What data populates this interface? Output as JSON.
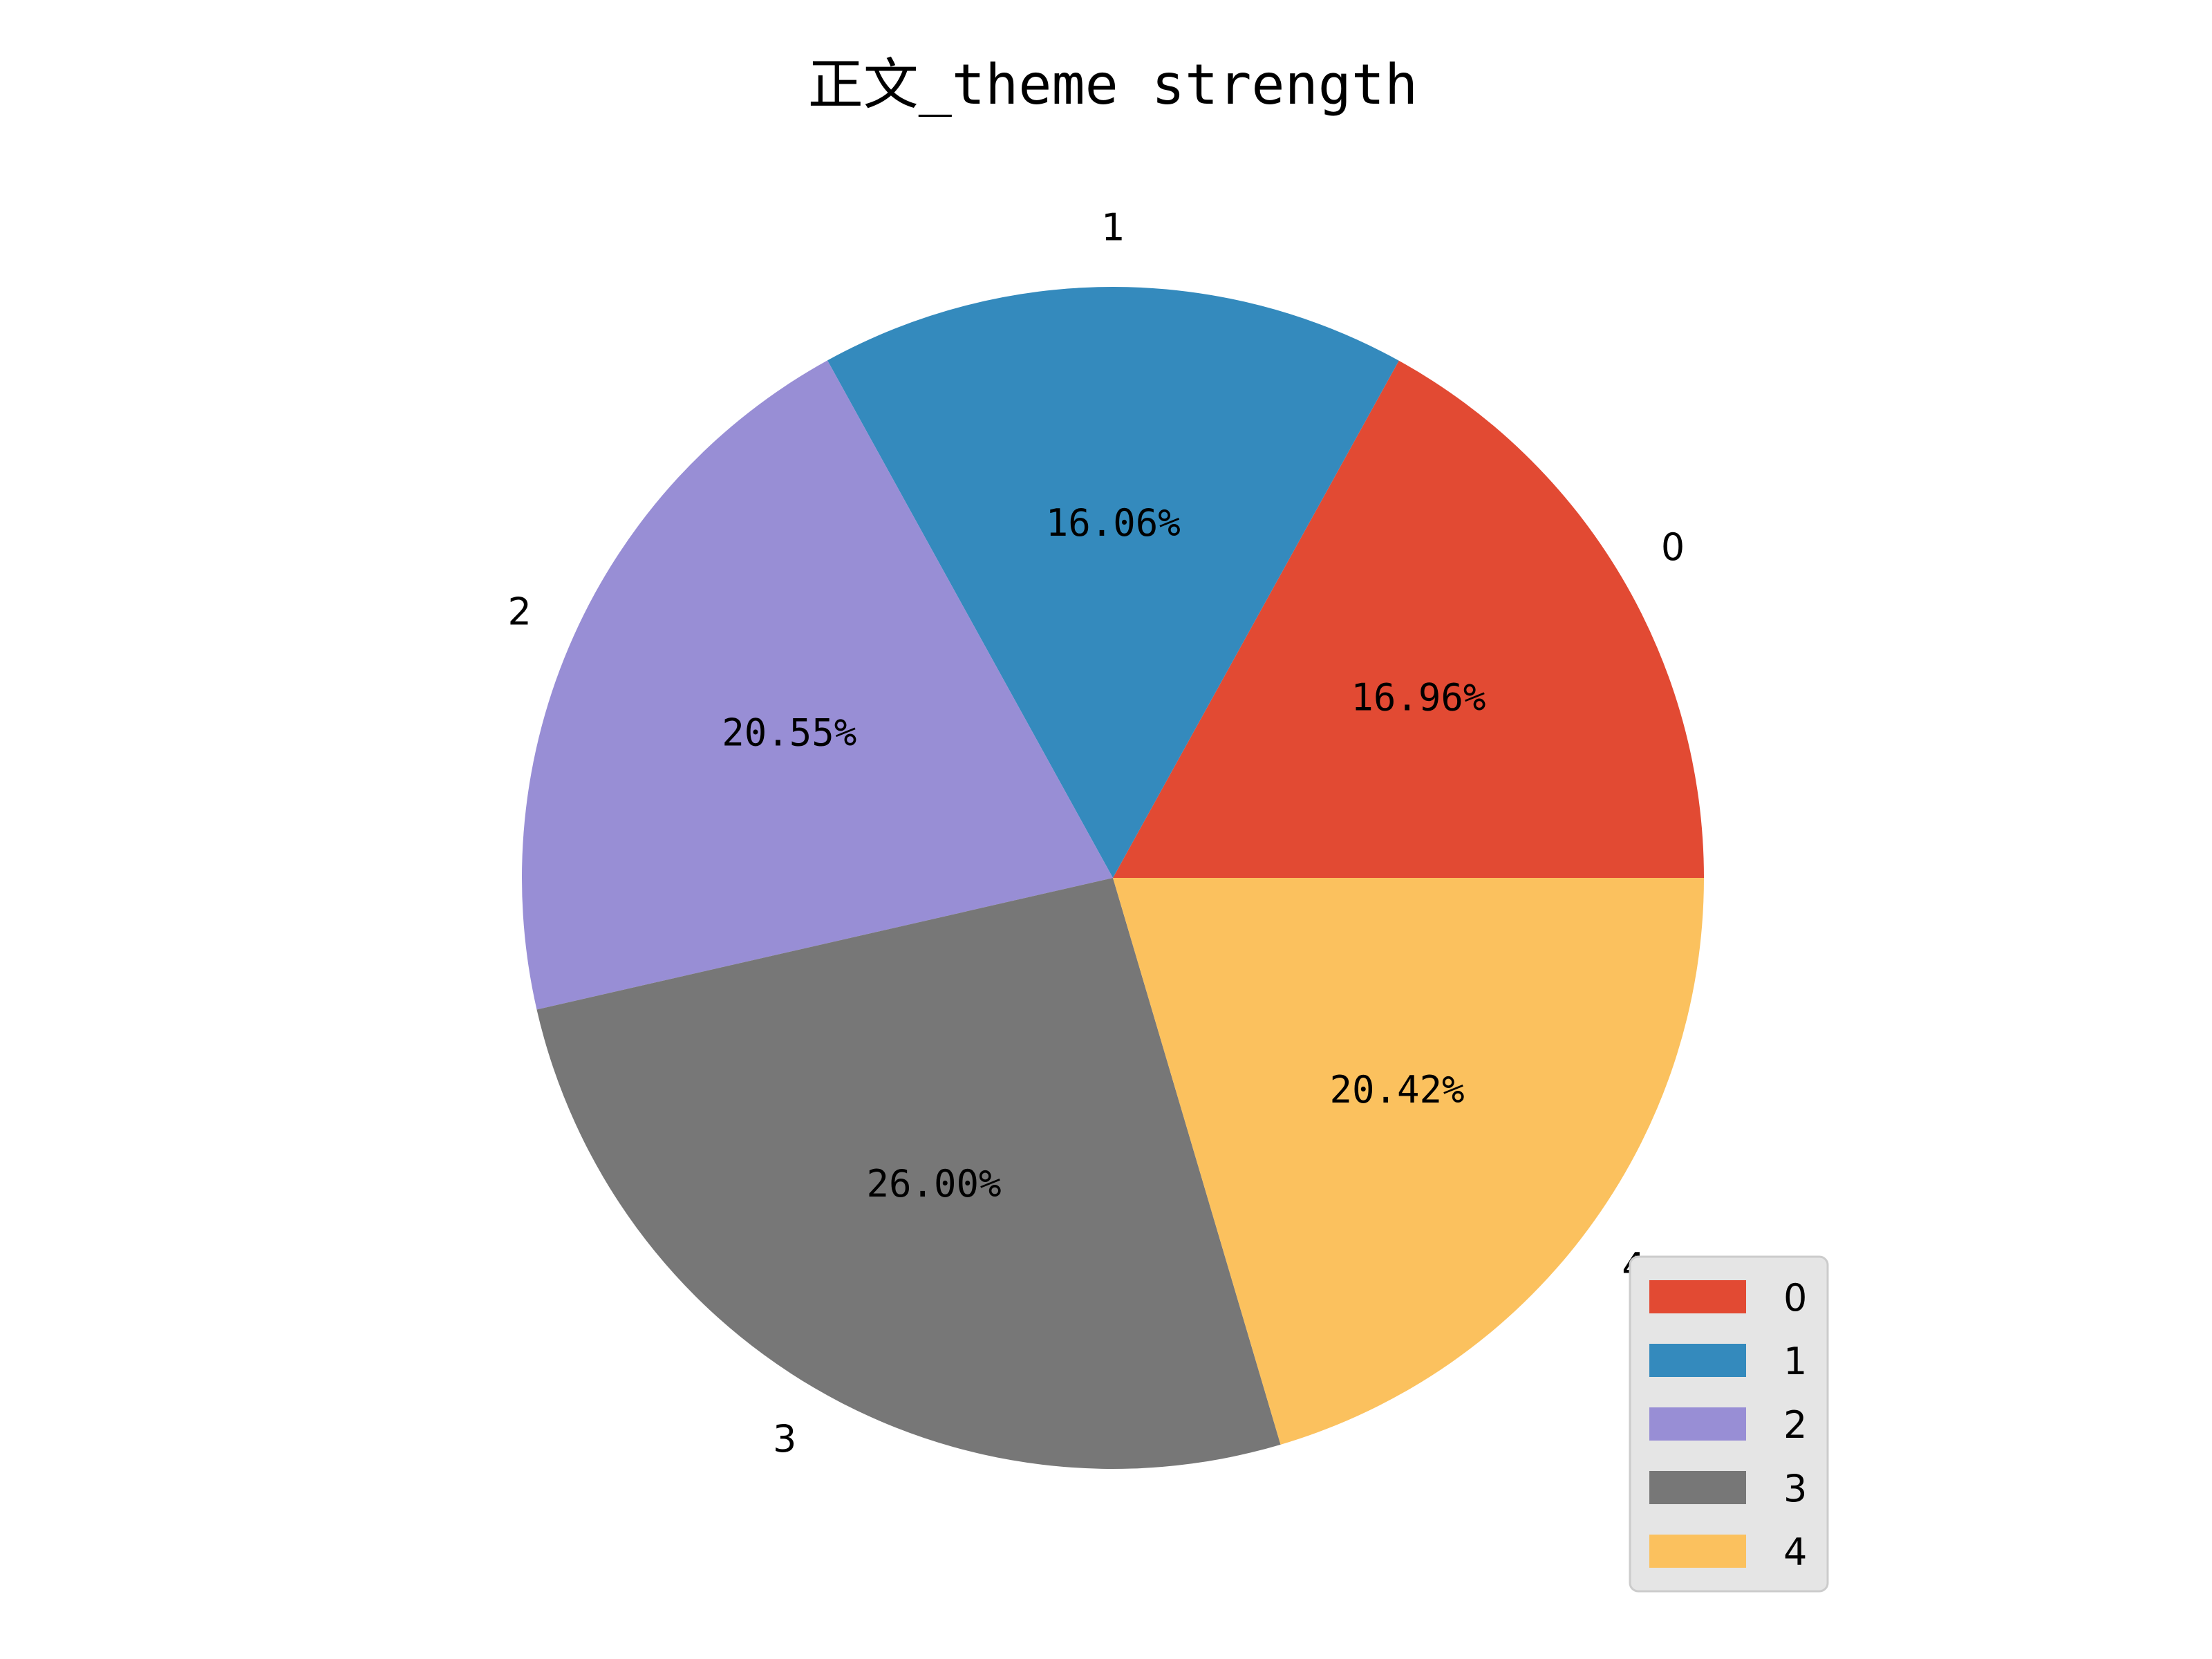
{
  "chart_data": {
    "type": "pie",
    "title": "正文_theme strength",
    "categories": [
      "0",
      "1",
      "2",
      "3",
      "4"
    ],
    "values": [
      16.96,
      16.06,
      20.55,
      26.0,
      20.42
    ],
    "percent_labels": [
      "16.96%",
      "16.06%",
      "20.55%",
      "26.00%",
      "20.42%"
    ],
    "colors": [
      "#E24A33",
      "#348ABD",
      "#988ED5",
      "#777777",
      "#FBC15E"
    ],
    "start_angle_deg": 0,
    "direction": "counterclockwise",
    "legend": {
      "placement": "bottom-right",
      "entries": [
        "0",
        "1",
        "2",
        "3",
        "4"
      ],
      "background": "#E5E5E5",
      "border": "#CCCCCC"
    }
  }
}
